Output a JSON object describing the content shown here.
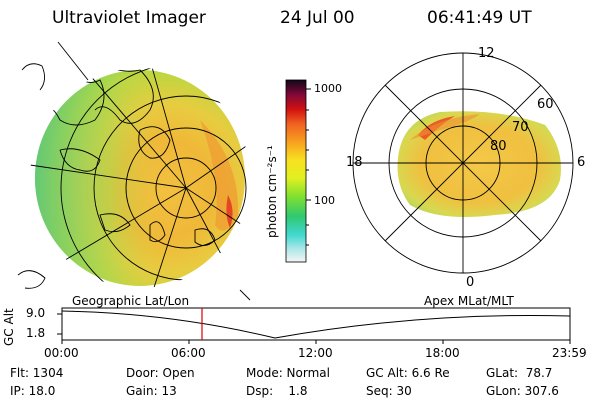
{
  "header": {
    "instrument": "Ultraviolet Imager",
    "date": "24 Jul 00",
    "time": "06:41:49 UT"
  },
  "colorbar": {
    "unit_label": "photon cm⁻²s⁻¹",
    "ticks": [
      "1000",
      "100"
    ]
  },
  "polar_plot": {
    "mlt_labels": [
      "12",
      "18",
      "6",
      "0"
    ],
    "lat_labels": [
      "60",
      "70",
      "80"
    ]
  },
  "panel_labels": {
    "left": "Geographic Lat/Lon",
    "right": "Apex MLat/MLT"
  },
  "timeline": {
    "ylabel": "GC Alt",
    "y_ticks": [
      "9.0",
      "1.8"
    ],
    "x_ticks": [
      "00:00",
      "06:00",
      "12:00",
      "18:00",
      "23:59"
    ]
  },
  "info": {
    "flt": "Flt: 1304",
    "ip": "IP: 18.0",
    "door": "Door: Open",
    "gain": "Gain: 13",
    "mode": "Mode: Normal",
    "dsp": "Dsp:    1.8",
    "gcalt": "GC Alt: 6.6 Re",
    "seq": "Seq: 30",
    "glat": "GLat:  78.7",
    "glon": "GLon: 307.6"
  },
  "colors": {
    "marker": "#dd0000",
    "aurora_main": "#f0b030"
  }
}
